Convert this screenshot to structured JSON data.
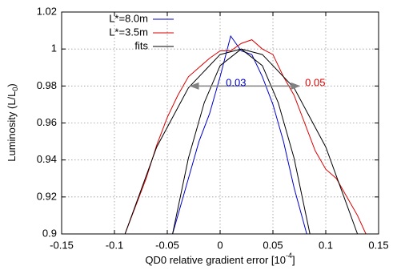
{
  "chart_data": {
    "type": "line",
    "xlabel": {
      "text": "QD0 relative gradient error [10",
      "sup": "-4",
      "tail": "]"
    },
    "ylabel": {
      "text": "Luminosity (L/L",
      "sub": "0",
      "tail": ")"
    },
    "xlim": [
      -0.15,
      0.15
    ],
    "xticks": [
      -0.15,
      -0.1,
      -0.05,
      0,
      0.05,
      0.1,
      0.15
    ],
    "ylim": [
      0.9,
      1.02
    ],
    "yticks": [
      0.9,
      0.92,
      0.94,
      0.96,
      0.98,
      1,
      1.02
    ],
    "grid": true,
    "legend": "upper left",
    "series": [
      {
        "name": "L*=8.0m",
        "color": "#0000cc",
        "x": [
          -0.045,
          -0.03,
          -0.02,
          -0.01,
          0,
          0.01,
          0.02,
          0.03,
          0.04,
          0.05,
          0.06,
          0.07,
          0.082
        ],
        "values": [
          0.9,
          0.93,
          0.95,
          0.965,
          0.985,
          1.007,
          0.999,
          0.997,
          0.985,
          0.97,
          0.95,
          0.925,
          0.9
        ]
      },
      {
        "name": "L*=3.5m",
        "color": "#dd0000",
        "x": [
          -0.09,
          -0.08,
          -0.07,
          -0.06,
          -0.05,
          -0.04,
          -0.03,
          -0.02,
          -0.01,
          0,
          0.01,
          0.02,
          0.03,
          0.04,
          0.05,
          0.06,
          0.07,
          0.08,
          0.09,
          0.1,
          0.11,
          0.12,
          0.13,
          0.138
        ],
        "values": [
          0.9,
          0.915,
          0.93,
          0.948,
          0.963,
          0.975,
          0.985,
          0.99,
          0.995,
          0.999,
          0.999,
          1.003,
          1.005,
          1.0,
          0.997,
          0.985,
          0.975,
          0.96,
          0.945,
          0.935,
          0.93,
          0.92,
          0.91,
          0.9
        ]
      },
      {
        "name": "fits",
        "color": "#000000",
        "x": [
          -0.045,
          -0.03,
          -0.015,
          0,
          0.02,
          0.04,
          0.055,
          0.07,
          0.085,
          null,
          -0.09,
          -0.06,
          -0.03,
          0,
          0.02,
          0.04,
          0.07,
          0.1,
          0.13
        ],
        "values": [
          0.9,
          0.941,
          0.971,
          0.991,
          1,
          0.991,
          0.971,
          0.941,
          0.9,
          null,
          0.9,
          0.947,
          0.979,
          0.997,
          1,
          0.997,
          0.979,
          0.947,
          0.9
        ]
      }
    ],
    "annotations": {
      "arrow": {
        "x": [
          -0.028,
          0.075
        ],
        "y": 0.98,
        "color": "#808080"
      },
      "labels": [
        {
          "text": "0.03",
          "x": 0.015,
          "y": 0.9815,
          "color": "#0000cc"
        },
        {
          "text": "0.05",
          "x": 0.09,
          "y": 0.9815,
          "color": "#dd0000"
        }
      ]
    }
  }
}
